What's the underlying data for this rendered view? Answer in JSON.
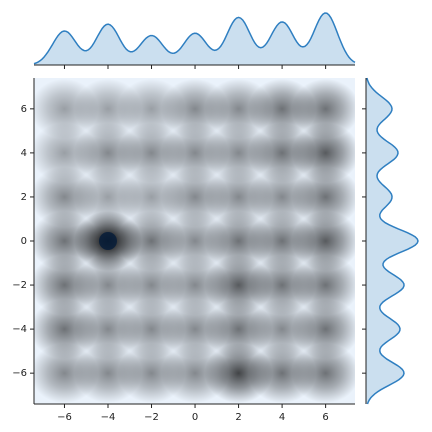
{
  "chart_data": {
    "type": "kde_joint",
    "x": [
      -6,
      -4,
      -2,
      0,
      2,
      4,
      6
    ],
    "y": [
      6,
      4,
      2,
      0,
      -2,
      -4,
      -6
    ],
    "density": [
      [
        1,
        1,
        1,
        2,
        2,
        3,
        3
      ],
      [
        1,
        2,
        2,
        2,
        2,
        3,
        4
      ],
      [
        2,
        1,
        1,
        2,
        2,
        2,
        3
      ],
      [
        3,
        8,
        3,
        2,
        3,
        3,
        4
      ],
      [
        3,
        2,
        2,
        2,
        4,
        3,
        3
      ],
      [
        3,
        2,
        2,
        2,
        3,
        2,
        3
      ],
      [
        2,
        2,
        2,
        2,
        5,
        3,
        3
      ]
    ],
    "color": "#2f7fc1",
    "background": "#eaf2fb",
    "xlim": [
      -7.4,
      7.35
    ],
    "ylim": [
      -7.4,
      7.4
    ],
    "xticks": [
      {
        "value": -6,
        "label": "−6"
      },
      {
        "value": -4,
        "label": "−4"
      },
      {
        "value": -2,
        "label": "−2"
      },
      0,
      2,
      4,
      6
    ],
    "yticks": [
      {
        "value": -6,
        "label": "−6"
      },
      {
        "value": -4,
        "label": "−4"
      },
      {
        "value": -2,
        "label": "−2"
      },
      0,
      2,
      4,
      6
    ]
  }
}
